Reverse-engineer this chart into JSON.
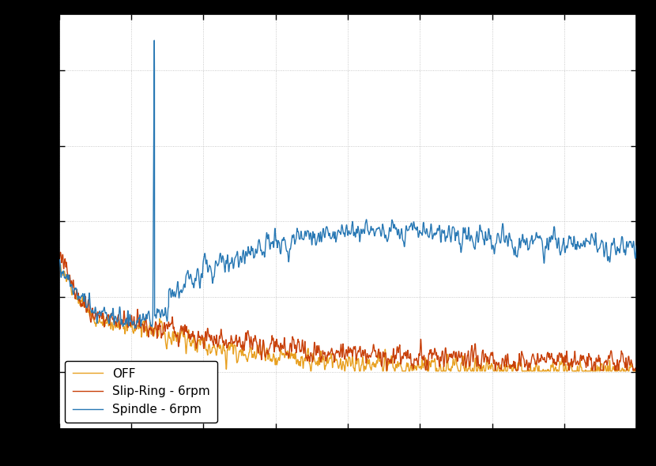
{
  "title": "",
  "xlabel": "",
  "ylabel": "",
  "legend_labels": [
    "Spindle - 6rpm",
    "Slip-Ring - 6rpm",
    "OFF"
  ],
  "colors": [
    "#2878b4",
    "#c8400a",
    "#e8a020"
  ],
  "linewidths": [
    1.0,
    1.0,
    1.0
  ],
  "background_color": "#ffffff",
  "grid_color": "#aaaaaa",
  "grid_style": ":",
  "xlim": [
    0,
    200
  ],
  "ylim": [
    -0.00015,
    0.00095
  ],
  "legend_loc": "lower left",
  "figsize": [
    8.3,
    5.9
  ],
  "dpi": 100,
  "spike_freq": 33.0,
  "spike_amplitude": 0.0009
}
